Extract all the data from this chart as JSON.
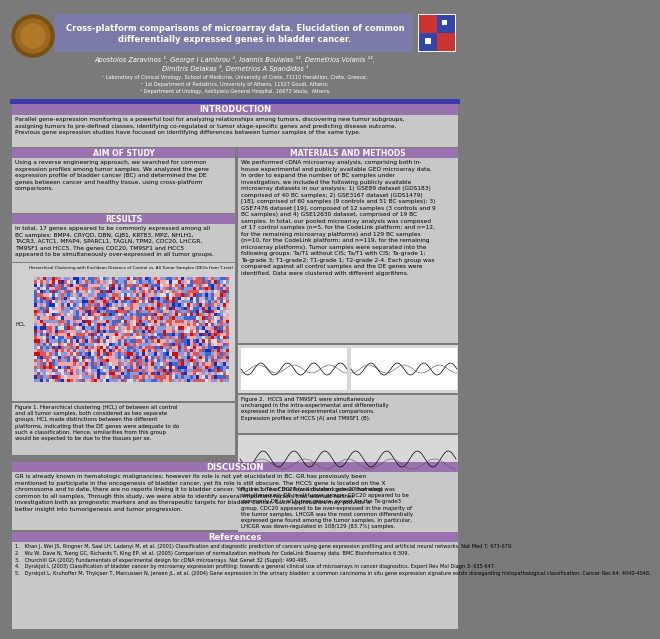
{
  "title_line1": "Cross-platform comparisons of microarray data. Elucidation of common",
  "title_line2": "differentially expressed genes in bladder cancer.",
  "authors_line1": "Apostolos Zaravinos ¹, George I Lambrou ², Ioannis Boulalas ¹³, Demetrios Volanis ¹³,",
  "authors_line2": "Dimitris Delakas ³, Demetrios A Spandidos ¹",
  "affil1": "¹ Laboratory of Clinical Virology, School of Medicine, University of Crete, 71110 Heraklion, Crete, Greece;",
  "affil2": "² 1st Department of Pediatrics, University of Athens, 11527 Goudi, Athens;",
  "affil3": "³ Department of Urology, Asklipieio General Hospital, 16673 Voula,  Athens.",
  "intro_title": "INTRODUCTION",
  "intro_text": "Parallel gene-expression monitoring is a powerful tool for analyzing relationships among tumors, discovering new tumor subgroups,\nassigning tumors to pre-defined classes, identifying co-regulated or tumor stage-specific genes and predicting disease outcome.\nPrevious gene expression studies have focused on identifying differences between tumor samples of the same type.",
  "aim_title": "AIM OF STUDY",
  "aim_text": "Using a reverse engineering approach, we searched for common\nexpression profiles among tumor samples. We analyzed the gene\nexpression profile of bladder cancer (BC) and determined the DE\ngenes between cancer and healthy tissue, using cross-platform\ncomparisons.",
  "results_title": "RESULTS",
  "results_text": "In total, 17 genes appeared to be commonly expressed among all\nBC samples: BMP4, CRYQD, DBN, GJB1, KRT83, MPZ, NHLH1,\nTACR3, ACTC1, MFAP4, SPARCL1, TAGLN, TPM2, CDC20, LHCGR,\nTM9SF1 and HCC5. The genes CDC20, TM9SF1 and HCC5\nappeared to be simultaneously over-expressed in all tumor groups.",
  "fig1_caption": "Figure 1. Hierarchical clustering (HCL) of between all control\nand all tumor samples, both considered as two separate\ngroups. HCL made distinctions between the different\nplatforms, indicating that the DE genes were adequate to do\nsuch a classification. Hence, similarities from this group\nwould be expected to be due to the tissues per se.",
  "methods_title": "MATERIALS AND METHODS",
  "methods_text": "We performed cDNA microarray analysis, comprising both in-\nhouse experimental and publicly available GEO microarray data.\nIn order to expand the number of BC samples under\ninvestigation, we included the following publicly available\nmicroarray datasets in our analysis: 1) GSE89 dataset (GDS183)\ncomprised of 40 BC samples; 2) GSE3167 dataset (GDS1479)\n[18], comprised of 60 samples (9 controls and 51 BC samples); 3)\nGSE7476 dataset [19], composed of 12 samples (3 controls and 9\nBC samples) and 4) GSE12630 dataset, comprised of 19 BC\nsamples. In total, our pooled microarray analysis was composed\nof 17 control samples (n=5, for the CodeLink platform; and n=12,\nfor the remaining microarray platforms) and 129 BC samples\n(n=10, for the CodeLink platform; and n=119, for the remaining\nmicroarray platforms). Tumor samples were separated into the\nfollowing groups: Ta/T1 without CIS; Ta/T1 with CIS; Ta-grade 1;\nTa-grade 3; T1-grade2; T1-grade 1; T2-grade 2-4. Each group was\ncompared against all control samples and the DE genes were\nidentified. Data were clustered with different algorithms.",
  "fig2_caption": "Figure 2.  HCCS and TM9SF1 were simultaneously\nunchanged in the intra-experimental and differentially\nexpressed in the inter-experimental comparisons.\nExpression profiles of HCCS (A) and TM9SF1 (B).",
  "fig3_caption": "Figure 3. The CDC20 (cell division cycle 20 homolog) was\nsimultaneously DE in all tumor groups. CDC20 appeared to be\ncommonly DE in all tumor groups, except for the Ta-grade3\ngroup. CDC20 appeared to be over-expressed in the majority of\nthe tumor samples. LHCGR was the most common differentially\nexpressed gene found among the tumor samples. In particular,\nLHCGR was down-regulated in 108/129 (83.7%) samples.",
  "disc_title": "DISCUSSION",
  "disc_text": "GR is already known in hematologic malignancies; however its\nrole is not yet elucidated in BC. GR has previously been\nmentioned to participate in the oncogenesis of bladder cancer,\nyet its role is still obscure. The HCCS gene is located on the X\nchromosome and to date, there are no reports linking it to\nbladder cancer. Yet, it is one of the few activated genes that were\ncommon to all samples. Through this study, we were able to\nidentify several important factors that warrant further\ninvestigation both as prognostic markers and as therapeutic\ntargets for bladder cancer. Such approaches may provide a\nbetter insight into tumorigenesis and tumor progression.",
  "ref_title": "References",
  "ref_text1": "1.   Khan J, Wei JS, Ringner M, Saal LH, Ladanyi M, et al. (2001) Classification and diagnostic prediction of cancers using gene expression profiling and artificial neural networks. Nat Med 7: 673-679.",
  "ref_text2": "2.   Wu W, Dave N, Tseng GC, Richards T, King EP, et al. (2005) Comparison of normalization methods for CodeLink Bioarray data. BMC Bioinformatics 6:309.",
  "ref_text3": "3.   Churchill GA (2002) Fundamentals of experimental design for cDNA microarrays. Nat Genet 32 (Suppl): 490-495.",
  "ref_text4": "4.   Dyrskjot L (2003) Classification of bladder cancer by microarray expression profiling: towards a general clinical use of microarrays in cancer diagnostics. Expert Rev Mol Diagn 3: 635-647.",
  "ref_text5": "5.   Dyrskjot L, Kruhoffer M, Thykjaer T, Marcussen N, Jensen JL, et al. (2004) Gene expression in the urinary bladder: a common carcinoma in situ gene expression signature exists disregarding histopathological classification. Cancer Res 64: 4040-4048.",
  "bg_color": "#7a7a7a",
  "header_title_bg": "#7b7baa",
  "section_header_bg": "#9b72b0",
  "content_bg": "#c8c8c8",
  "accent_bar_color": "#3a3aaa",
  "white": "#ffffff",
  "black": "#000000"
}
